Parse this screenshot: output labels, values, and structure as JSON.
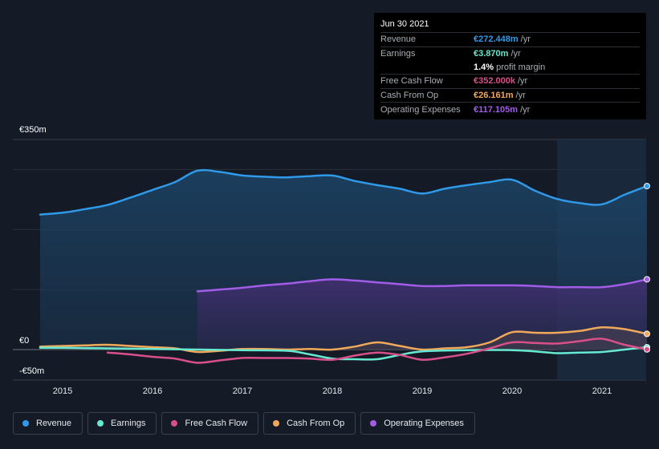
{
  "tooltip": {
    "date": "Jun 30 2021",
    "rows": [
      {
        "label": "Revenue",
        "value": "€272.448m",
        "unit": "/yr",
        "color": "#2f9ae9"
      },
      {
        "label": "Earnings",
        "value": "€3.870m",
        "unit": "/yr",
        "color": "#67e8d0"
      },
      {
        "label": "",
        "value": "1.4%",
        "unit": "profit margin",
        "color": "#ffffff"
      },
      {
        "label": "Free Cash Flow",
        "value": "€352.000k",
        "unit": "/yr",
        "color": "#d94f8a"
      },
      {
        "label": "Cash From Op",
        "value": "€26.161m",
        "unit": "/yr",
        "color": "#f0a95a"
      },
      {
        "label": "Operating Expenses",
        "value": "€117.105m",
        "unit": "/yr",
        "color": "#a35ce8"
      }
    ]
  },
  "axis": {
    "top_label": "€350m",
    "zero_label": "€0",
    "bottom_label": "-€50m"
  },
  "chart_data": {
    "type": "area",
    "title": "",
    "xlabel": "",
    "ylabel": "",
    "ylim": [
      -50,
      350
    ],
    "xlim": [
      2014.55,
      2021.5
    ],
    "x_ticks": [
      2015,
      2016,
      2017,
      2018,
      2019,
      2020,
      2021
    ],
    "x_tick_labels": [
      "2015",
      "2016",
      "2017",
      "2018",
      "2019",
      "2020",
      "2021"
    ],
    "highlight_start": 2020.5,
    "series": [
      {
        "name": "Revenue",
        "color": "#2f9ae9",
        "fill": true,
        "points": [
          [
            2014.75,
            225
          ],
          [
            2015.0,
            228
          ],
          [
            2015.25,
            234
          ],
          [
            2015.5,
            241
          ],
          [
            2015.75,
            253
          ],
          [
            2016.0,
            266
          ],
          [
            2016.25,
            279
          ],
          [
            2016.5,
            298
          ],
          [
            2016.75,
            296
          ],
          [
            2017.0,
            290
          ],
          [
            2017.25,
            288
          ],
          [
            2017.5,
            287
          ],
          [
            2017.75,
            289
          ],
          [
            2018.0,
            290
          ],
          [
            2018.25,
            281
          ],
          [
            2018.5,
            274
          ],
          [
            2018.75,
            268
          ],
          [
            2019.0,
            260
          ],
          [
            2019.25,
            268
          ],
          [
            2019.5,
            274
          ],
          [
            2019.75,
            279
          ],
          [
            2020.0,
            283
          ],
          [
            2020.25,
            265
          ],
          [
            2020.5,
            251
          ],
          [
            2020.75,
            244
          ],
          [
            2021.0,
            242
          ],
          [
            2021.25,
            258
          ],
          [
            2021.5,
            272.4
          ]
        ]
      },
      {
        "name": "Operating Expenses",
        "color": "#a35ce8",
        "fill": true,
        "points": [
          [
            2016.5,
            97
          ],
          [
            2016.75,
            100
          ],
          [
            2017.0,
            103
          ],
          [
            2017.25,
            107
          ],
          [
            2017.5,
            110
          ],
          [
            2017.75,
            114
          ],
          [
            2018.0,
            117
          ],
          [
            2018.25,
            115
          ],
          [
            2018.5,
            112
          ],
          [
            2018.75,
            109
          ],
          [
            2019.0,
            106
          ],
          [
            2019.25,
            106
          ],
          [
            2019.5,
            107
          ],
          [
            2019.75,
            107
          ],
          [
            2020.0,
            107
          ],
          [
            2020.25,
            106
          ],
          [
            2020.5,
            104
          ],
          [
            2020.75,
            104
          ],
          [
            2021.0,
            104
          ],
          [
            2021.25,
            109
          ],
          [
            2021.5,
            117.1
          ]
        ]
      },
      {
        "name": "Cash From Op",
        "color": "#f0a95a",
        "fill": true,
        "points": [
          [
            2014.75,
            5
          ],
          [
            2015.0,
            6
          ],
          [
            2015.25,
            7
          ],
          [
            2015.5,
            8
          ],
          [
            2015.75,
            6
          ],
          [
            2016.0,
            4
          ],
          [
            2016.25,
            2
          ],
          [
            2016.5,
            -4
          ],
          [
            2016.75,
            -2
          ],
          [
            2017.0,
            1
          ],
          [
            2017.25,
            1
          ],
          [
            2017.5,
            0
          ],
          [
            2017.75,
            1
          ],
          [
            2018.0,
            0
          ],
          [
            2018.25,
            5
          ],
          [
            2018.5,
            12
          ],
          [
            2018.75,
            6
          ],
          [
            2019.0,
            0
          ],
          [
            2019.25,
            2
          ],
          [
            2019.5,
            4
          ],
          [
            2019.75,
            12
          ],
          [
            2020.0,
            29
          ],
          [
            2020.25,
            28
          ],
          [
            2020.5,
            28
          ],
          [
            2020.75,
            31
          ],
          [
            2021.0,
            37
          ],
          [
            2021.25,
            34
          ],
          [
            2021.5,
            26.2
          ]
        ]
      },
      {
        "name": "Earnings",
        "color": "#67e8d0",
        "fill": false,
        "points": [
          [
            2014.75,
            3
          ],
          [
            2015.0,
            3
          ],
          [
            2015.5,
            2
          ],
          [
            2016.0,
            1
          ],
          [
            2016.5,
            0
          ],
          [
            2017.0,
            -1
          ],
          [
            2017.5,
            -2
          ],
          [
            2017.75,
            -8
          ],
          [
            2018.0,
            -15
          ],
          [
            2018.25,
            -16
          ],
          [
            2018.5,
            -16
          ],
          [
            2018.75,
            -9
          ],
          [
            2019.0,
            -3
          ],
          [
            2019.5,
            -1
          ],
          [
            2020.0,
            -1
          ],
          [
            2020.25,
            -3
          ],
          [
            2020.5,
            -6
          ],
          [
            2020.75,
            -5
          ],
          [
            2021.0,
            -4
          ],
          [
            2021.25,
            0
          ],
          [
            2021.5,
            3.9
          ]
        ]
      },
      {
        "name": "Free Cash Flow",
        "color": "#d94f8a",
        "fill": false,
        "points": [
          [
            2015.5,
            -5
          ],
          [
            2015.75,
            -8
          ],
          [
            2016.0,
            -12
          ],
          [
            2016.25,
            -15
          ],
          [
            2016.5,
            -22
          ],
          [
            2016.75,
            -18
          ],
          [
            2017.0,
            -14
          ],
          [
            2017.25,
            -14
          ],
          [
            2017.5,
            -14
          ],
          [
            2017.75,
            -15
          ],
          [
            2018.0,
            -17
          ],
          [
            2018.25,
            -10
          ],
          [
            2018.5,
            -5
          ],
          [
            2018.75,
            -9
          ],
          [
            2019.0,
            -17
          ],
          [
            2019.25,
            -13
          ],
          [
            2019.5,
            -7
          ],
          [
            2019.75,
            2
          ],
          [
            2020.0,
            12
          ],
          [
            2020.25,
            11
          ],
          [
            2020.5,
            10
          ],
          [
            2020.75,
            14
          ],
          [
            2021.0,
            18
          ],
          [
            2021.25,
            8
          ],
          [
            2021.5,
            0.35
          ]
        ]
      }
    ]
  },
  "legend": [
    {
      "label": "Revenue",
      "color": "#2f9ae9"
    },
    {
      "label": "Earnings",
      "color": "#67e8d0"
    },
    {
      "label": "Free Cash Flow",
      "color": "#d94f8a"
    },
    {
      "label": "Cash From Op",
      "color": "#f0a95a"
    },
    {
      "label": "Operating Expenses",
      "color": "#a35ce8"
    }
  ]
}
